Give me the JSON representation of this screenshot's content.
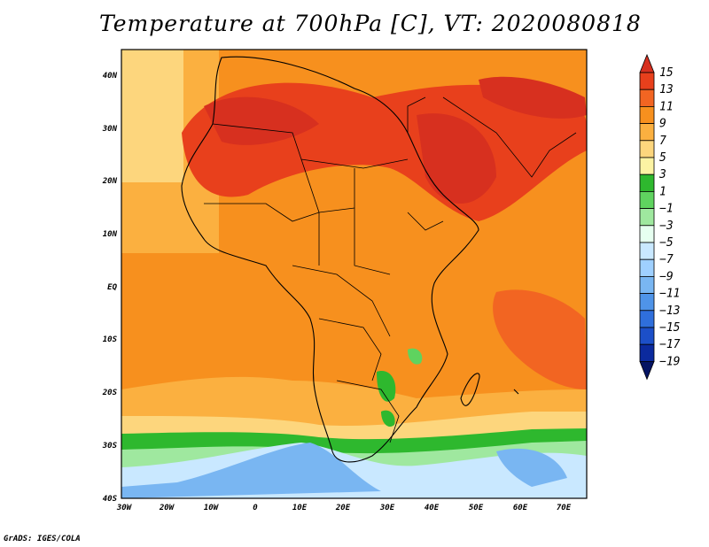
{
  "title": "Temperature at 700hPa [C], VT: 2020080818",
  "credit": "GrADS: IGES/COLA",
  "lat_labels": [
    "40N",
    "30N",
    "20N",
    "10N",
    "EQ",
    "10S",
    "20S",
    "30S",
    "40S"
  ],
  "lon_labels": [
    "30W",
    "20W",
    "10W",
    "0",
    "10E",
    "20E",
    "30E",
    "40E",
    "50E",
    "60E",
    "70E"
  ],
  "colorbar": {
    "labels": [
      "15",
      "13",
      "11",
      "9",
      "7",
      "5",
      "3",
      "1",
      "−1",
      "−3",
      "−5",
      "−7",
      "−9",
      "−11",
      "−13",
      "−15",
      "−17",
      "−19"
    ],
    "colors": [
      "#d7301f",
      "#e8401c",
      "#f26522",
      "#f7901e",
      "#fbb040",
      "#fdd67d",
      "#fcf3a3",
      "#2eb82e",
      "#5fd35f",
      "#9fe89f",
      "#e6fff0",
      "#c9e8ff",
      "#9fd0ff",
      "#79b6f2",
      "#4f94e8",
      "#2f6fdc",
      "#1c4fc8",
      "#0b2a9e",
      "#041463"
    ]
  },
  "map": {
    "projection": "lat-lon",
    "lon_range": [
      -30,
      75
    ],
    "lat_range": [
      -40,
      45
    ],
    "variable": "Temperature at 700hPa",
    "units": "C"
  }
}
